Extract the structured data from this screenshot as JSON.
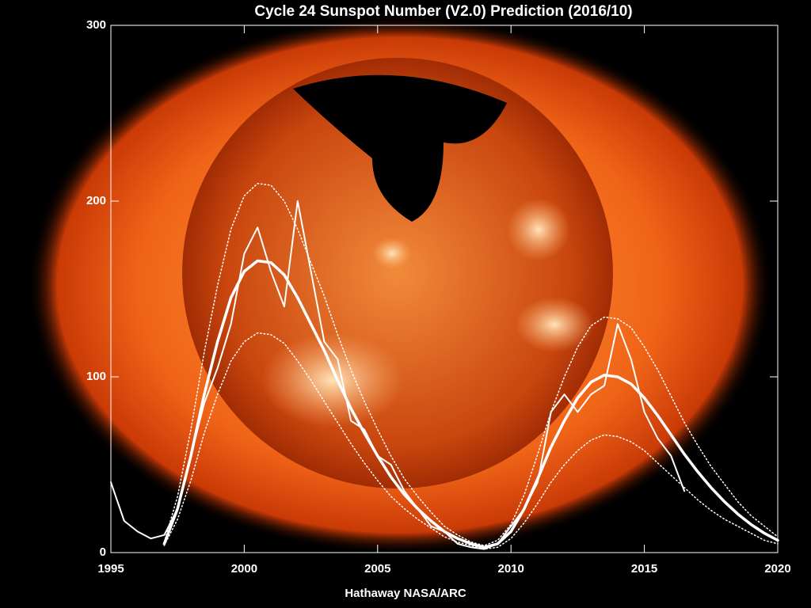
{
  "chart_data": {
    "type": "line",
    "title": "Cycle 24 Sunspot Number (V2.0) Prediction (2016/10)",
    "credit": "Hathaway  NASA/ARC",
    "x": [
      1995,
      1995.5,
      1996,
      1996.5,
      1997,
      1997.5,
      1998,
      1998.5,
      1999,
      1999.5,
      2000,
      2000.5,
      2001,
      2001.5,
      2002,
      2002.5,
      2003,
      2003.5,
      2004,
      2004.5,
      2005,
      2005.5,
      2006,
      2006.5,
      2007,
      2007.5,
      2008,
      2008.5,
      2009,
      2009.5,
      2010,
      2010.5,
      2011,
      2011.5,
      2012,
      2012.5,
      2013,
      2013.5,
      2014,
      2014.5,
      2015,
      2015.5,
      2016,
      2016.5,
      2017,
      2017.5,
      2018,
      2018.5,
      2019,
      2019.5,
      2020
    ],
    "series": [
      {
        "color": "#ffffff",
        "style": "solid",
        "values": [
          40,
          18,
          12,
          8,
          10,
          25,
          55,
          85,
          105,
          130,
          170,
          185,
          160,
          140,
          200,
          160,
          120,
          110,
          75,
          70,
          55,
          50,
          35,
          25,
          15,
          12,
          5,
          3,
          2,
          5,
          15,
          25,
          40,
          80,
          90,
          80,
          90,
          95,
          130,
          110,
          80,
          65,
          55,
          35,
          null,
          null,
          null,
          null,
          null,
          null,
          null
        ]
      },
      {
        "color": "#ffffff",
        "style": "bold",
        "values": [
          null,
          null,
          null,
          null,
          5,
          25,
          55,
          90,
          120,
          145,
          160,
          166,
          165,
          158,
          145,
          130,
          115,
          98,
          82,
          68,
          55,
          43,
          33,
          25,
          18,
          12,
          8,
          5,
          3,
          5,
          12,
          25,
          42,
          60,
          75,
          88,
          97,
          101,
          100,
          96,
          88,
          78,
          67,
          56,
          46,
          37,
          29,
          22,
          16,
          11,
          7
        ]
      },
      {
        "color": "#ffffff",
        "style": "dotted",
        "values": [
          null,
          null,
          null,
          null,
          6,
          32,
          70,
          114,
          152,
          184,
          203,
          210,
          209,
          200,
          184,
          165,
          146,
          124,
          104,
          86,
          70,
          55,
          42,
          32,
          23,
          15,
          10,
          6,
          4,
          7,
          16,
          33,
          56,
          80,
          100,
          117,
          129,
          134,
          133,
          128,
          117,
          104,
          89,
          74,
          61,
          49,
          39,
          29,
          21,
          15,
          9
        ]
      },
      {
        "color": "#ffffff",
        "style": "dotted",
        "values": [
          null,
          null,
          null,
          null,
          4,
          19,
          41,
          68,
          90,
          109,
          120,
          125,
          124,
          119,
          109,
          98,
          86,
          74,
          62,
          51,
          41,
          32,
          25,
          19,
          14,
          9,
          6,
          4,
          2,
          3,
          8,
          17,
          28,
          40,
          50,
          58,
          64,
          67,
          66,
          63,
          58,
          51,
          44,
          37,
          30,
          24,
          19,
          15,
          11,
          7,
          5
        ]
      }
    ],
    "xlim": [
      1995,
      2020
    ],
    "xticks": [
      1995,
      2000,
      2005,
      2010,
      2015,
      2020
    ],
    "ylim": [
      0,
      300
    ],
    "yticks": [
      0,
      100,
      200,
      300
    ]
  }
}
